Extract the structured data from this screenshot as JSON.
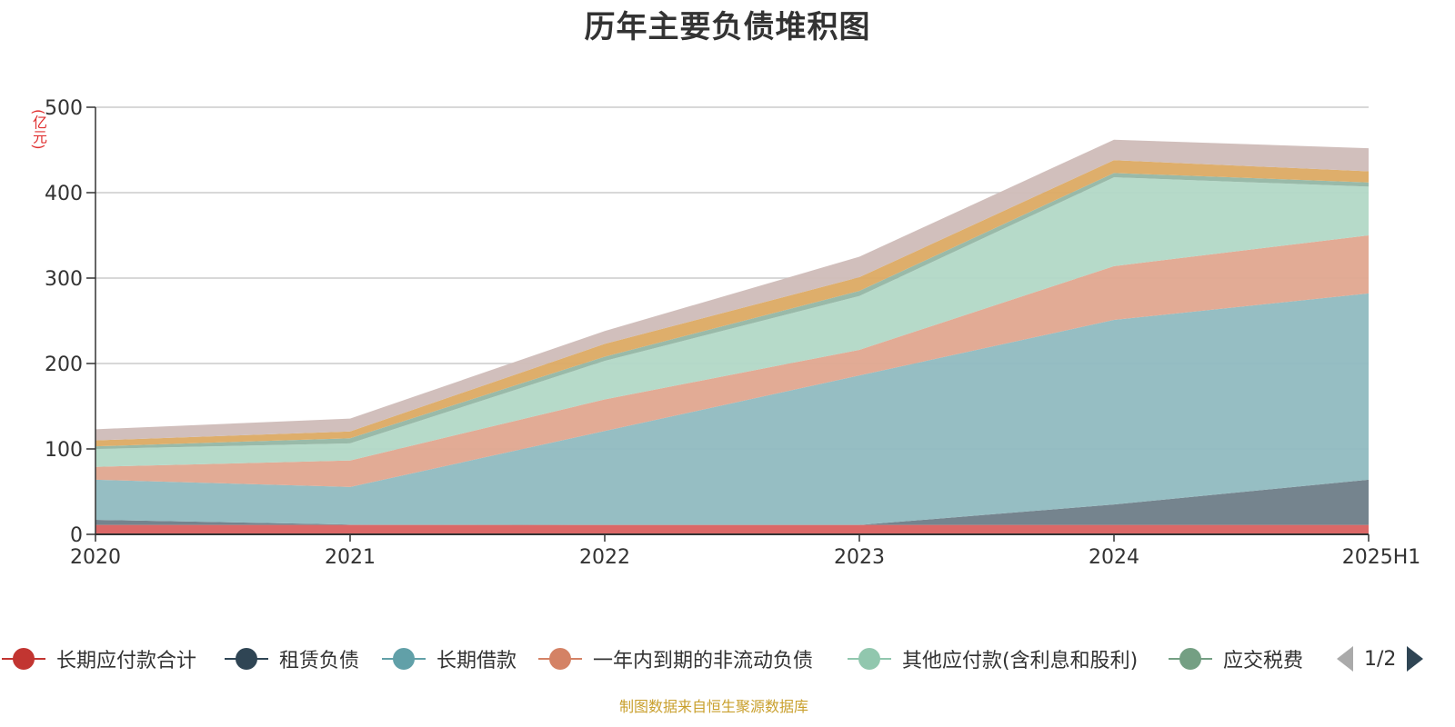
{
  "chart_data": {
    "type": "area",
    "stacked": true,
    "title": "历年主要负债堆积图",
    "unit_label": "(亿元)",
    "categories": [
      "2020",
      "2021",
      "2022",
      "2023",
      "2024",
      "2025H1"
    ],
    "ylim": [
      0,
      500
    ],
    "yticks": [
      0,
      100,
      200,
      300,
      400,
      500
    ],
    "grid": true,
    "legend_position": "bottom",
    "series": [
      {
        "name": "长期应付款合计",
        "color": "#d9605f",
        "values": [
          11,
          11,
          11,
          11,
          11,
          11
        ]
      },
      {
        "name": "租赁负债",
        "color": "#6e7d88",
        "values": [
          6,
          0.5,
          0,
          0,
          24,
          53
        ]
      },
      {
        "name": "长期借款",
        "color": "#90bac0",
        "values": [
          47,
          44,
          110,
          175,
          216,
          218
        ]
      },
      {
        "name": "一年内到期的非流动负债",
        "color": "#e0a68f",
        "values": [
          15,
          31,
          37,
          30,
          63,
          68
        ]
      },
      {
        "name": "其他应付款(含利息和股利)",
        "color": "#b2d8c6",
        "values": [
          21,
          20,
          45,
          63,
          104,
          57
        ]
      },
      {
        "name": "应交税费",
        "color": "#94b6a4",
        "values": [
          3,
          6,
          5,
          6,
          5,
          5
        ]
      },
      {
        "name": "",
        "color": "#dcaa63",
        "values": [
          7,
          8,
          15,
          16,
          15,
          13
        ]
      },
      {
        "name": "",
        "color": "#cfbcb8",
        "values": [
          13,
          15,
          15,
          24,
          24,
          27
        ]
      }
    ]
  },
  "legend": {
    "items": [
      {
        "label": "长期应付款合计",
        "color": "#c23531"
      },
      {
        "label": "租赁负债",
        "color": "#2f4554"
      },
      {
        "label": "长期借款",
        "color": "#61a0a8"
      },
      {
        "label": "一年内到期的非流动负债",
        "color": "#d48265"
      },
      {
        "label": "其他应付款(含利息和股利)",
        "color": "#91c7ae"
      },
      {
        "label": "应交税费",
        "color": "#749f83"
      }
    ],
    "page": "1/2"
  },
  "footer": "制图数据来自恒生聚源数据库"
}
